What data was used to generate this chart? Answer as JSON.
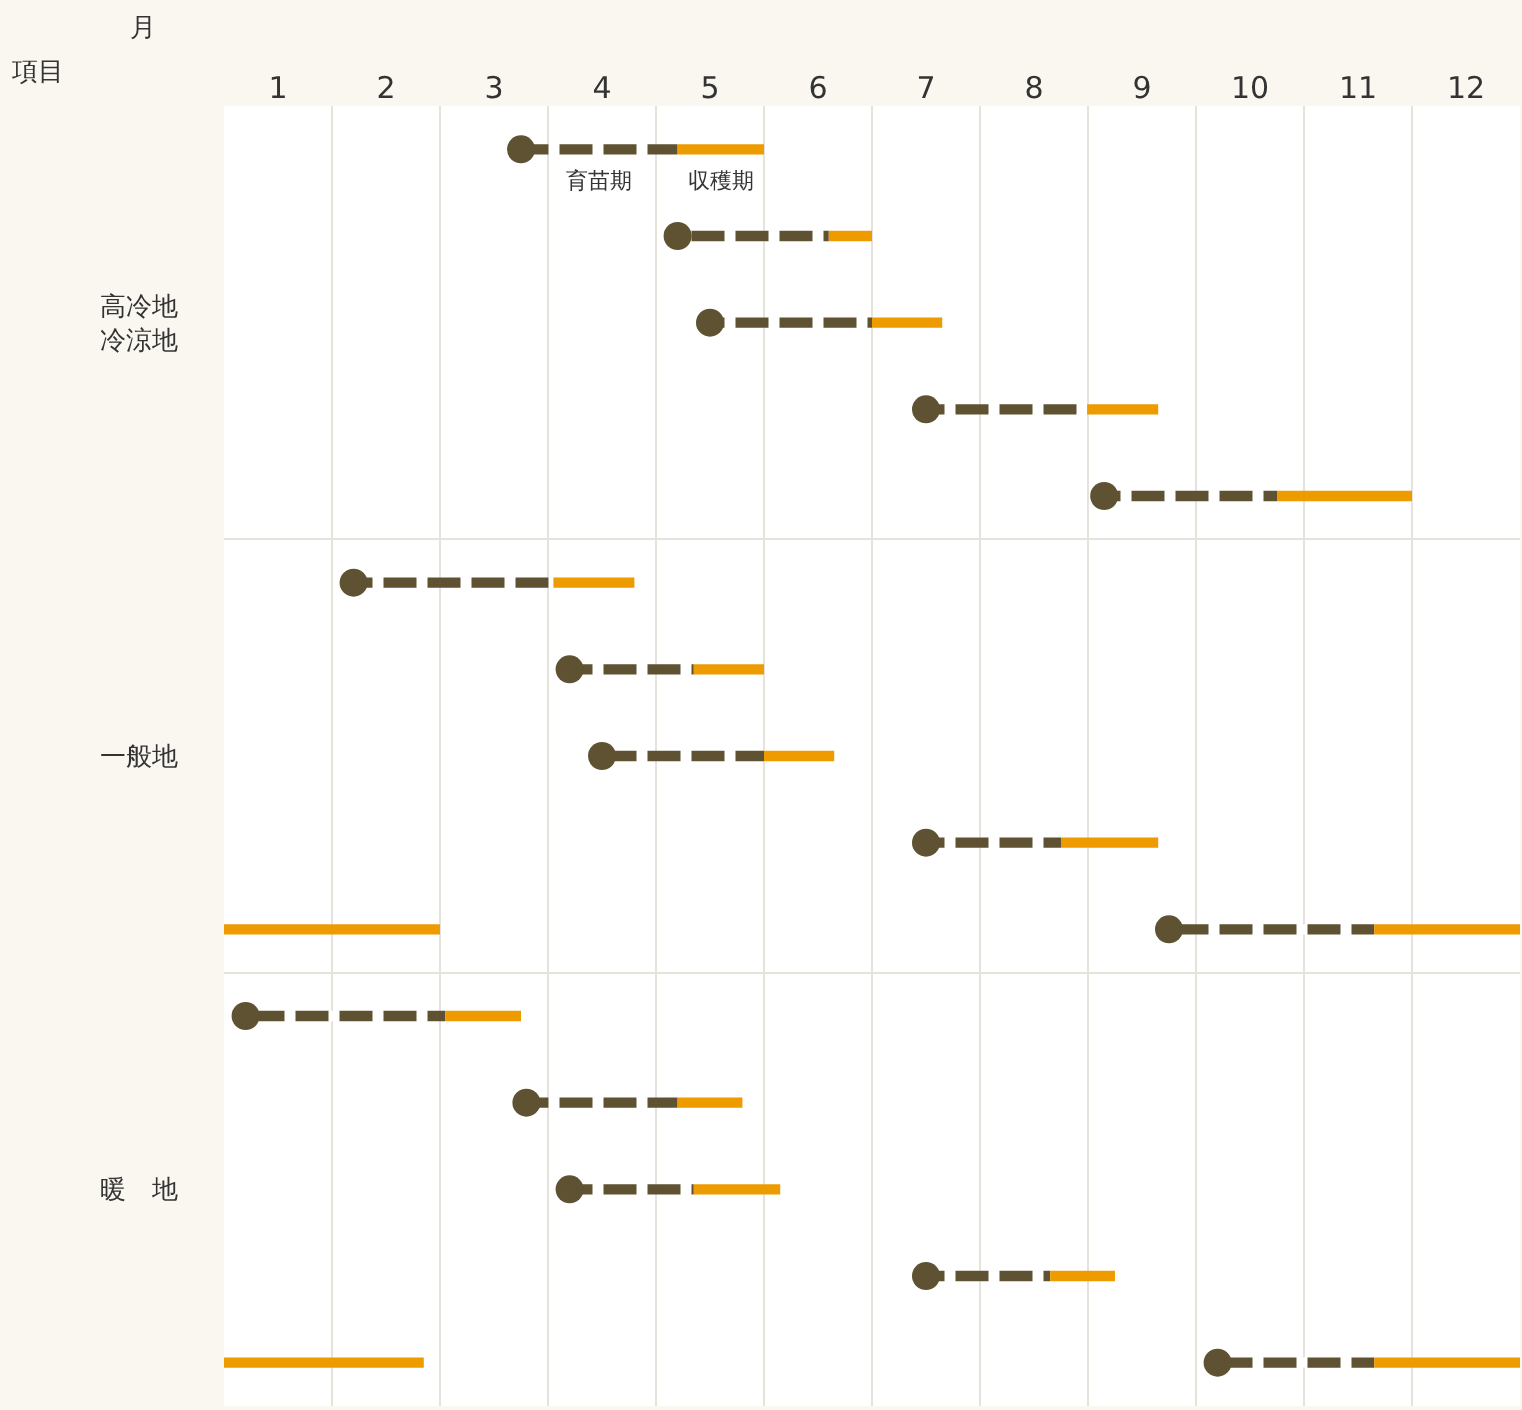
{
  "chart_data": {
    "type": "bar",
    "orientation": "horizontal",
    "xlabel": "月",
    "ylabel": "項目",
    "categories": [
      null,
      null,
      "高冷地冷涼地",
      null,
      null,
      null,
      null,
      "一般地",
      null,
      null,
      null,
      null,
      "暖　地",
      null,
      null
    ],
    "xlim": [
      0,
      12
    ],
    "xticks": [
      {
        "value": 0.5,
        "label": "1"
      },
      {
        "value": 1.5,
        "label": "2"
      },
      {
        "value": 2.5,
        "label": "3"
      },
      {
        "value": 3.5,
        "label": "4"
      },
      {
        "value": 4.5,
        "label": "5"
      },
      {
        "value": 5.5,
        "label": "6"
      },
      {
        "value": 6.5,
        "label": "7"
      },
      {
        "value": 7.5,
        "label": "8"
      },
      {
        "value": 8.5,
        "label": "9"
      },
      {
        "value": 9.5,
        "label": "10"
      },
      {
        "value": 10.5,
        "label": "11"
      },
      {
        "value": 11.5,
        "label": "12"
      }
    ],
    "grid": "x",
    "legend": false,
    "series": [
      {
        "type": "scatter",
        "color": "#5e5233",
        "marker": "circle",
        "values": [
          2.75,
          4.2,
          4.5,
          6.5,
          8.15,
          1.2,
          3.2,
          3.5,
          6.5,
          8.75,
          0.2,
          2.8,
          3.2,
          6.5,
          9.2
        ]
      },
      {
        "name": "育苗期",
        "color": "#5e5233",
        "line_style": "dashed",
        "base": [
          2.75,
          4.2,
          4.5,
          6.5,
          8.15,
          1.2,
          3.2,
          3.5,
          6.5,
          8.75,
          0.2,
          2.8,
          3.2,
          6.5,
          9.2
        ],
        "values": [
          1.45,
          1.4,
          1.5,
          1.5,
          1.6,
          1.85,
          1.15,
          1.5,
          1.25,
          1.9,
          1.85,
          1.4,
          1.15,
          1.15,
          1.45
        ]
      },
      {
        "name": "収穫期",
        "color": "#ee9b00",
        "base": [
          4.2,
          5.6,
          6.0,
          8.0,
          9.75,
          3.05,
          4.35,
          5.0,
          7.75,
          10.65,
          2.05,
          4.2,
          4.35,
          7.65,
          10.65
        ],
        "values": [
          0.8,
          0.4,
          0.65,
          0.65,
          1.25,
          0.75,
          0.65,
          0.65,
          0.9,
          1.35,
          0.7,
          0.6,
          0.8,
          0.6,
          1.35
        ]
      },
      {
        "color": "#ee9b00",
        "base": [
          null,
          null,
          null,
          null,
          null,
          null,
          null,
          null,
          null,
          0,
          null,
          null,
          null,
          null,
          0
        ],
        "values": [
          null,
          null,
          null,
          null,
          null,
          null,
          null,
          null,
          null,
          2.0,
          null,
          null,
          null,
          null,
          1.85
        ]
      }
    ]
  }
}
